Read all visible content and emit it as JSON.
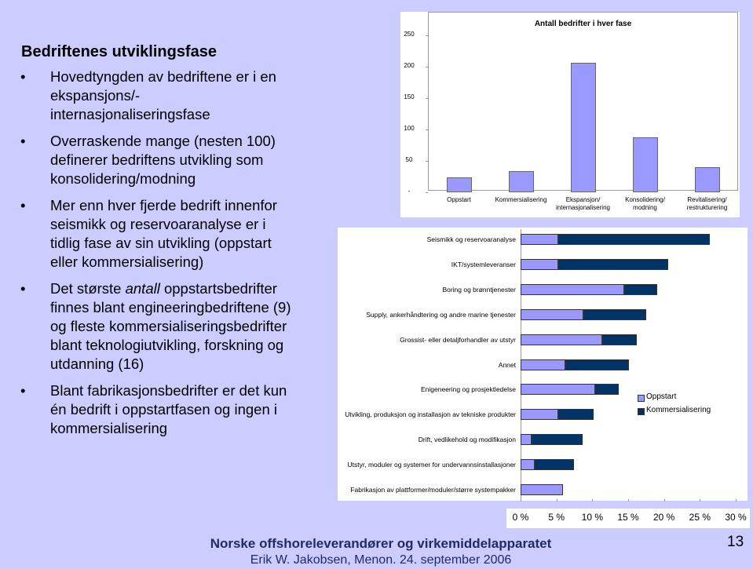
{
  "slide": {
    "title": "Bedriftenes utviklingsfase",
    "bullets": [
      [
        "Hovedtyngden av bedriftene er i en ekspansjons/- internasjonaliseringsfase"
      ],
      [
        "Overraskende mange (nesten 100) definerer bedriftens utvikling som konsolidering/modning"
      ],
      [
        "Mer enn hver fjerde bedrift innenfor seismikk og reservoaranalyse er i tidlig fase av sin utvikling (oppstart eller kommersialisering)"
      ],
      [
        "Det største ",
        "antall",
        " oppstartsbedrifter finnes blant engineeringbedriftene (9) og fleste kommersialiseringsbedrifter blant teknologiutvikling, forskning og utdanning (16)"
      ],
      [
        "Blant fabrikasjonsbedrifter er det kun én bedrift i oppstartfasen og ingen i kommersialisering"
      ]
    ],
    "footer": "Norske offshoreleverandører og virkemiddelapparatet",
    "author": "Erik W. Jakobsen, Menon. 24. september 2006",
    "page": "13"
  },
  "chart_data": [
    {
      "type": "bar",
      "title": "Antall bedrifter i hver fase",
      "categories": [
        "Oppstart",
        "Kommersialisering",
        "Ekspansjon/ internasjonalisering",
        "Konsolidering/ modning",
        "Revitalisering/ restrukturering"
      ],
      "values": [
        24,
        34,
        206,
        88,
        40
      ],
      "color": "#9999ff",
      "ylim": [
        0,
        250
      ],
      "yticks": [
        {
          "value": 0,
          "label": "-"
        },
        50,
        100,
        150,
        200,
        250
      ]
    },
    {
      "type": "hbar-stacked",
      "categories": [
        "Seismikk og reservoaranalyse",
        "IKT/systemleveranser",
        "Boring og brønntjenester",
        "Supply, ankerhåndtering og andre marine tjenester",
        "Grossist- eller detaljforhandler av utstyr",
        "Annet",
        "Enigeneering og prosjektledelse",
        "Utvikling, produksjon og installasjon av tekniske produkter",
        "Drift, vedlikehold og modifikasjon",
        "Utstyr, moduler og systemer for undervannsinstallasjoner",
        "Fabrikasjon av plattformer/moduler/større systempakker"
      ],
      "series": [
        {
          "name": "Oppstart",
          "color": "#9999ff",
          "values": [
            5.3,
            5.3,
            14.5,
            8.8,
            11.4,
            6.2,
            10.4,
            5.3,
            1.5,
            2.0,
            5.9
          ]
        },
        {
          "name": "Kommersialisering",
          "color": "#003366",
          "values": [
            21.1,
            15.3,
            4.6,
            8.7,
            4.8,
            8.9,
            3.3,
            4.9,
            7.2,
            5.5,
            0
          ]
        }
      ],
      "xlim": [
        0,
        30
      ],
      "xticks": [
        {
          "value": 0,
          "label": "0 %"
        },
        {
          "value": 5,
          "label": "5 %"
        },
        {
          "value": 10,
          "label": "10 %"
        },
        {
          "value": 15,
          "label": "15 %"
        },
        {
          "value": 20,
          "label": "20 %"
        },
        {
          "value": 25,
          "label": "25 %"
        },
        {
          "value": 30,
          "label": "30 %"
        }
      ]
    }
  ]
}
